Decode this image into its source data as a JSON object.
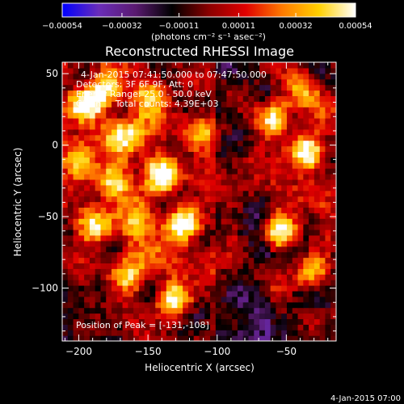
{
  "chart_data": {
    "type": "heatmap",
    "title": "Reconstructed RHESSI Image",
    "xlabel": "Heliocentric X (arcsec)",
    "ylabel": "Heliocentric Y (arcsec)",
    "xlim": [
      -212,
      -14
    ],
    "ylim": [
      -137,
      58
    ],
    "x_ticks": [
      -200,
      -150,
      -100,
      -50
    ],
    "x_tick_labels": [
      "−200",
      "−150",
      "−100",
      "−50"
    ],
    "y_ticks": [
      -100,
      -50,
      0,
      50
    ],
    "y_tick_labels": [
      "−100",
      "−50",
      "0",
      "50"
    ],
    "colorbar": {
      "range": [
        -0.00054,
        0.00054
      ],
      "ticks": [
        -0.00054,
        -0.00032,
        -0.00011,
        0.00011,
        0.00032,
        0.00054
      ],
      "tick_labels": [
        "−0.00054",
        "−0.00032",
        "−0.00011",
        "0.00011",
        "0.00032",
        "0.00054"
      ],
      "unit_label": "(photons cm⁻² s⁻¹ asec⁻²)",
      "colors": [
        "#0000ff",
        "#6a2db8",
        "#5a1a70",
        "#000000",
        "#8a0000",
        "#e00000",
        "#ff7a00",
        "#ffd000",
        "#ffffff"
      ]
    },
    "annotations": [
      "4-Jan-2015 07:41:50.000 to 07:47:50.000",
      "Detectors: 3F 6F 9F, Att: 0",
      "Energy Range: 25.0 - 50.0 keV",
      "Clean     Total counts: 4.39E+03"
    ],
    "peak_label": "Position of Peak = [-131,-108]",
    "peak": [
      -131,
      -108
    ],
    "hotspots": [
      {
        "x": -195,
        "y": 30,
        "v": 0.00054
      },
      {
        "x": -180,
        "y": 40,
        "v": 0.00045
      },
      {
        "x": -200,
        "y": -10,
        "v": 0.00032
      },
      {
        "x": -190,
        "y": -55,
        "v": 0.00045
      },
      {
        "x": -175,
        "y": -25,
        "v": 0.00032
      },
      {
        "x": -150,
        "y": 35,
        "v": 0.00032
      },
      {
        "x": -140,
        "y": -20,
        "v": 0.00045
      },
      {
        "x": -125,
        "y": -55,
        "v": 0.00054
      },
      {
        "x": -131,
        "y": -108,
        "v": 0.00054
      },
      {
        "x": -165,
        "y": -90,
        "v": 0.00032
      },
      {
        "x": -110,
        "y": 10,
        "v": 0.00032
      },
      {
        "x": -60,
        "y": 20,
        "v": 0.00045
      },
      {
        "x": -35,
        "y": -5,
        "v": 0.00054
      },
      {
        "x": -40,
        "y": 40,
        "v": 0.00032
      },
      {
        "x": -55,
        "y": -60,
        "v": 0.00054
      },
      {
        "x": -30,
        "y": -90,
        "v": 0.00032
      }
    ]
  },
  "footer_timestamp": "4-Jan-2015 07:00"
}
